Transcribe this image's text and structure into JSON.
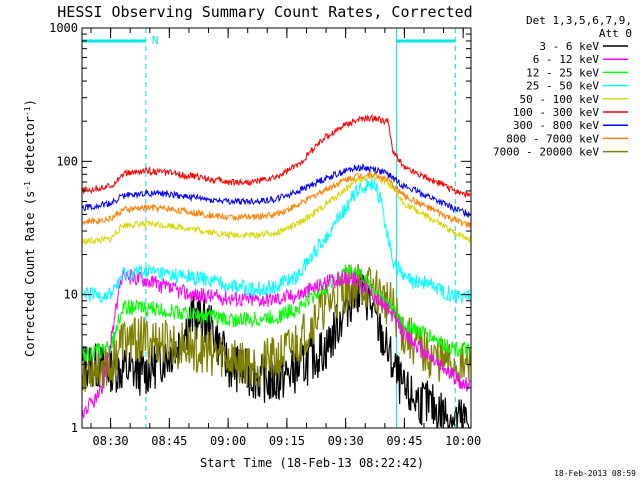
{
  "chart_data": {
    "type": "line",
    "title": "HESSI Observing Summary Count Rates, Corrected",
    "xlabel": "Start Time (18-Feb-13 08:22:42)",
    "ylabel": "Corrected Count Rate (s",
    "ylabel_sup": "-1",
    "ylabel_rest": " detector",
    "ylabel_end": ")",
    "ylog": true,
    "ylim": [
      1,
      1000
    ],
    "xlim": [
      "08:22:42",
      "10:02:00"
    ],
    "yticks": [
      {
        "label": "1",
        "value": 1
      },
      {
        "label": "10",
        "value": 10
      },
      {
        "label": "100",
        "value": 100
      },
      {
        "label": "1000",
        "value": 1000
      }
    ],
    "xticks": [
      {
        "label": "08:30",
        "value": "08:30"
      },
      {
        "label": "08:45",
        "value": "08:45"
      },
      {
        "label": "09:00",
        "value": "09:00"
      },
      {
        "label": "09:15",
        "value": "09:15"
      },
      {
        "label": "09:30",
        "value": "09:30"
      },
      {
        "label": "09:45",
        "value": "09:45"
      },
      {
        "label": "10:00",
        "value": "10:00"
      }
    ],
    "legend": {
      "placement": "right",
      "header_line1": "Det 1,3,5,6,7,9,",
      "header_line2": "Att 0"
    },
    "flags": {
      "intervals": [
        {
          "start": "08:22:42",
          "end": "08:39:00"
        },
        {
          "start": "09:43:00",
          "end": "09:58:00"
        }
      ],
      "marker_label": "N",
      "night_lines": [
        "08:39:00",
        "09:43:00",
        "09:58:00"
      ],
      "color": "#00e5e5"
    },
    "series": [
      {
        "name": "3 - 6 keV",
        "color": "#000000",
        "values": [
          [
            8.38,
            3
          ],
          [
            8.5,
            2.8
          ],
          [
            8.65,
            2.6
          ],
          [
            8.78,
            4
          ],
          [
            8.85,
            7
          ],
          [
            8.92,
            6
          ],
          [
            9.0,
            3
          ],
          [
            9.1,
            2.5
          ],
          [
            9.2,
            2.2
          ],
          [
            9.3,
            2.8
          ],
          [
            9.42,
            4
          ],
          [
            9.5,
            8
          ],
          [
            9.55,
            11
          ],
          [
            9.6,
            9
          ],
          [
            9.65,
            5
          ],
          [
            9.7,
            3
          ],
          [
            9.75,
            1.8
          ],
          [
            9.85,
            1.5
          ],
          [
            9.95,
            1.2
          ],
          [
            10.03,
            1.1
          ]
        ]
      },
      {
        "name": "6 - 12 keV",
        "color": "#ff00ff",
        "values": [
          [
            8.38,
            1.3
          ],
          [
            8.46,
            1.8
          ],
          [
            8.55,
            14
          ],
          [
            8.65,
            13
          ],
          [
            8.75,
            11
          ],
          [
            8.85,
            10
          ],
          [
            9.0,
            9.5
          ],
          [
            9.1,
            9.2
          ],
          [
            9.2,
            9.3
          ],
          [
            9.3,
            10
          ],
          [
            9.4,
            12
          ],
          [
            9.5,
            13.5
          ],
          [
            9.55,
            13
          ],
          [
            9.62,
            10
          ],
          [
            9.7,
            7
          ],
          [
            9.75,
            5
          ],
          [
            9.85,
            3.5
          ],
          [
            9.95,
            2.5
          ],
          [
            10.03,
            2
          ]
        ]
      },
      {
        "name": "12 - 25 keV",
        "color": "#00ff00",
        "values": [
          [
            8.38,
            3.5
          ],
          [
            8.5,
            4
          ],
          [
            8.55,
            8
          ],
          [
            8.62,
            8
          ],
          [
            8.75,
            7.5
          ],
          [
            8.9,
            7
          ],
          [
            9.0,
            6.5
          ],
          [
            9.1,
            6.5
          ],
          [
            9.2,
            6.8
          ],
          [
            9.3,
            8
          ],
          [
            9.4,
            11
          ],
          [
            9.5,
            15
          ],
          [
            9.55,
            15
          ],
          [
            9.62,
            11
          ],
          [
            9.7,
            8
          ],
          [
            9.75,
            6
          ],
          [
            9.85,
            5
          ],
          [
            9.95,
            4
          ],
          [
            10.03,
            3.8
          ]
        ]
      },
      {
        "name": "25 - 50 keV",
        "color": "#00ffff",
        "values": [
          [
            8.38,
            9.8
          ],
          [
            8.5,
            10
          ],
          [
            8.55,
            14
          ],
          [
            8.65,
            15
          ],
          [
            8.75,
            14
          ],
          [
            8.9,
            13
          ],
          [
            9.0,
            12
          ],
          [
            9.1,
            11
          ],
          [
            9.2,
            11.5
          ],
          [
            9.3,
            14
          ],
          [
            9.4,
            25
          ],
          [
            9.5,
            45
          ],
          [
            9.55,
            60
          ],
          [
            9.62,
            70
          ],
          [
            9.65,
            50
          ],
          [
            9.7,
            18
          ],
          [
            9.75,
            13
          ],
          [
            9.85,
            12
          ],
          [
            9.95,
            10
          ],
          [
            10.03,
            9.8
          ]
        ]
      },
      {
        "name": "50 - 100 keV",
        "color": "#d7d700",
        "values": [
          [
            8.38,
            25
          ],
          [
            8.5,
            26
          ],
          [
            8.55,
            33
          ],
          [
            8.65,
            34
          ],
          [
            8.75,
            33
          ],
          [
            8.9,
            30
          ],
          [
            9.0,
            28
          ],
          [
            9.1,
            28
          ],
          [
            9.2,
            29
          ],
          [
            9.3,
            34
          ],
          [
            9.4,
            45
          ],
          [
            9.5,
            62
          ],
          [
            9.55,
            72
          ],
          [
            9.62,
            78
          ],
          [
            9.68,
            68
          ],
          [
            9.75,
            48
          ],
          [
            9.85,
            38
          ],
          [
            9.95,
            30
          ],
          [
            10.03,
            26
          ]
        ]
      },
      {
        "name": "100 - 300 keV",
        "color": "#ff0000",
        "values": [
          [
            8.38,
            60
          ],
          [
            8.5,
            65
          ],
          [
            8.55,
            80
          ],
          [
            8.65,
            85
          ],
          [
            8.75,
            82
          ],
          [
            8.9,
            75
          ],
          [
            9.0,
            70
          ],
          [
            9.1,
            70
          ],
          [
            9.2,
            75
          ],
          [
            9.3,
            95
          ],
          [
            9.4,
            145
          ],
          [
            9.5,
            190
          ],
          [
            9.55,
            205
          ],
          [
            9.62,
            210
          ],
          [
            9.68,
            200
          ],
          [
            9.7,
            120
          ],
          [
            9.75,
            90
          ],
          [
            9.85,
            75
          ],
          [
            9.95,
            62
          ],
          [
            10.03,
            55
          ]
        ]
      },
      {
        "name": "300 - 800 keV",
        "color": "#0000ff",
        "values": [
          [
            8.38,
            45
          ],
          [
            8.5,
            48
          ],
          [
            8.55,
            55
          ],
          [
            8.65,
            58
          ],
          [
            8.75,
            57
          ],
          [
            8.9,
            52
          ],
          [
            9.0,
            50
          ],
          [
            9.1,
            50
          ],
          [
            9.2,
            52
          ],
          [
            9.3,
            60
          ],
          [
            9.4,
            73
          ],
          [
            9.5,
            85
          ],
          [
            9.55,
            90
          ],
          [
            9.62,
            88
          ],
          [
            9.68,
            80
          ],
          [
            9.75,
            65
          ],
          [
            9.85,
            55
          ],
          [
            9.95,
            45
          ],
          [
            10.03,
            40
          ]
        ]
      },
      {
        "name": "800 - 7000 keV",
        "color": "#ff8000",
        "values": [
          [
            8.38,
            35
          ],
          [
            8.5,
            37
          ],
          [
            8.55,
            43
          ],
          [
            8.65,
            45
          ],
          [
            8.75,
            44
          ],
          [
            8.9,
            40
          ],
          [
            9.0,
            38
          ],
          [
            9.1,
            38
          ],
          [
            9.2,
            40
          ],
          [
            9.3,
            47
          ],
          [
            9.4,
            60
          ],
          [
            9.5,
            73
          ],
          [
            9.55,
            78
          ],
          [
            9.62,
            80
          ],
          [
            9.68,
            72
          ],
          [
            9.75,
            55
          ],
          [
            9.85,
            45
          ],
          [
            9.95,
            37
          ],
          [
            10.03,
            33
          ]
        ]
      },
      {
        "name": "7000 - 20000 keV",
        "color": "#808000",
        "values": [
          [
            8.38,
            2.8
          ],
          [
            8.5,
            3
          ],
          [
            8.55,
            4.5
          ],
          [
            8.62,
            4.6
          ],
          [
            8.75,
            4.3
          ],
          [
            8.9,
            3.8
          ],
          [
            9.0,
            3.4
          ],
          [
            9.1,
            3
          ],
          [
            9.2,
            3.2
          ],
          [
            9.3,
            4.5
          ],
          [
            9.4,
            8
          ],
          [
            9.5,
            11
          ],
          [
            9.55,
            12
          ],
          [
            9.62,
            11
          ],
          [
            9.7,
            8
          ],
          [
            9.75,
            5
          ],
          [
            9.85,
            3.5
          ],
          [
            9.95,
            3
          ],
          [
            10.03,
            2.8
          ]
        ]
      }
    ]
  },
  "footer": {
    "timestamp": "18-Feb-2013 08:59"
  }
}
